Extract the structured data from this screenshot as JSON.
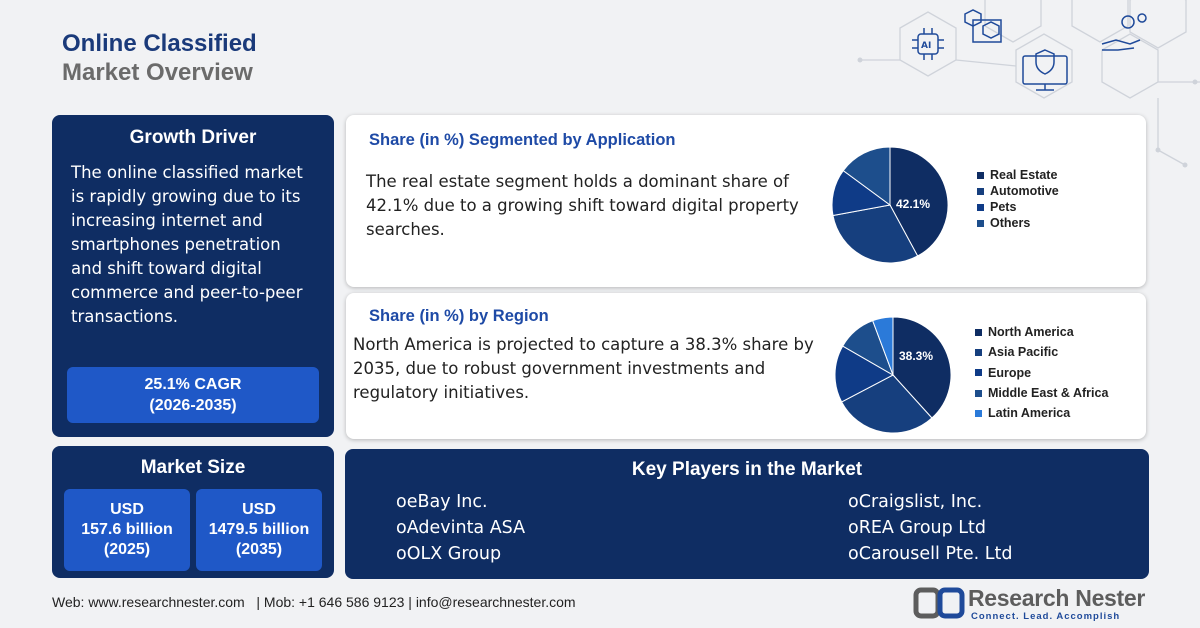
{
  "title": {
    "line1": "Online Classified",
    "line2": "Market Overview"
  },
  "growth_driver": {
    "heading": "Growth Driver",
    "text": "The online classified market is rapidly growing due to its increasing internet and smartphones penetration and shift toward digital commerce and peer-to-peer transactions.",
    "cagr_line1": "25.1% CAGR",
    "cagr_line2": "(2026-2035)"
  },
  "market_size": {
    "heading": "Market Size",
    "boxes": [
      {
        "currency": "USD",
        "value": "157.6 billion",
        "year": "(2025)"
      },
      {
        "currency": "USD",
        "value": "1479.5 billion",
        "year": "(2035)"
      }
    ]
  },
  "application_share": {
    "heading": "Share (in %) Segmented by Application",
    "text": "The real estate segment holds a dominant share of 42.1% due to a growing shift toward digital property searches.",
    "pie_label": "42.1%",
    "legend": [
      {
        "label": "Real Estate",
        "color": "#0f2d63"
      },
      {
        "label": "Automotive",
        "color": "#163f7e"
      },
      {
        "label": "Pets",
        "color": "#0f3b87"
      },
      {
        "label": "Others",
        "color": "#1d4e8c"
      }
    ],
    "slices": [
      {
        "value": 42.1,
        "color": "#0f2d63"
      },
      {
        "value": 30,
        "color": "#163f7e"
      },
      {
        "value": 13,
        "color": "#0f3b87"
      },
      {
        "value": 14.9,
        "color": "#1d4e8c"
      }
    ]
  },
  "region_share": {
    "heading": "Share (in %) by Region",
    "text": "North America is projected to capture a 38.3% share by 2035, due to robust government investments and regulatory initiatives.",
    "pie_label": "38.3%",
    "legend": [
      {
        "label": "North America",
        "color": "#0f2d63"
      },
      {
        "label": "Asia Pacific",
        "color": "#163f7e"
      },
      {
        "label": "Europe",
        "color": "#0f3b87"
      },
      {
        "label": "Middle East & Africa",
        "color": "#1d4e8c"
      },
      {
        "label": "Latin America",
        "color": "#2b7ad9"
      }
    ],
    "slices": [
      {
        "value": 38.3,
        "color": "#0f2d63"
      },
      {
        "value": 29,
        "color": "#163f7e"
      },
      {
        "value": 16,
        "color": "#0f3b87"
      },
      {
        "value": 11,
        "color": "#1d4e8c"
      },
      {
        "value": 5.7,
        "color": "#2b7ad9"
      }
    ]
  },
  "key_players": {
    "heading": "Key Players in the Market",
    "bullet": "o",
    "left": [
      "eBay Inc.",
      "Adevinta ASA",
      "OLX Group"
    ],
    "right": [
      "Craigslist, Inc.",
      "REA Group Ltd",
      "Carousell Pte. Ltd"
    ]
  },
  "footer": {
    "text": "Web: www.researchnester.com   | Mob: +1 646 586 9123 | info@researchnester.com"
  },
  "logo": {
    "name": "Research Nester",
    "tagline": "Connect. Lead. Accomplish"
  },
  "colors": {
    "navy": "#0f2d63",
    "accent_blue": "#1f58c7",
    "heading_blue": "#1e4aa6"
  },
  "decor_icons": [
    "cubes-icon",
    "ai-chip-icon",
    "shield-monitor-icon",
    "hand-gear-icon"
  ]
}
